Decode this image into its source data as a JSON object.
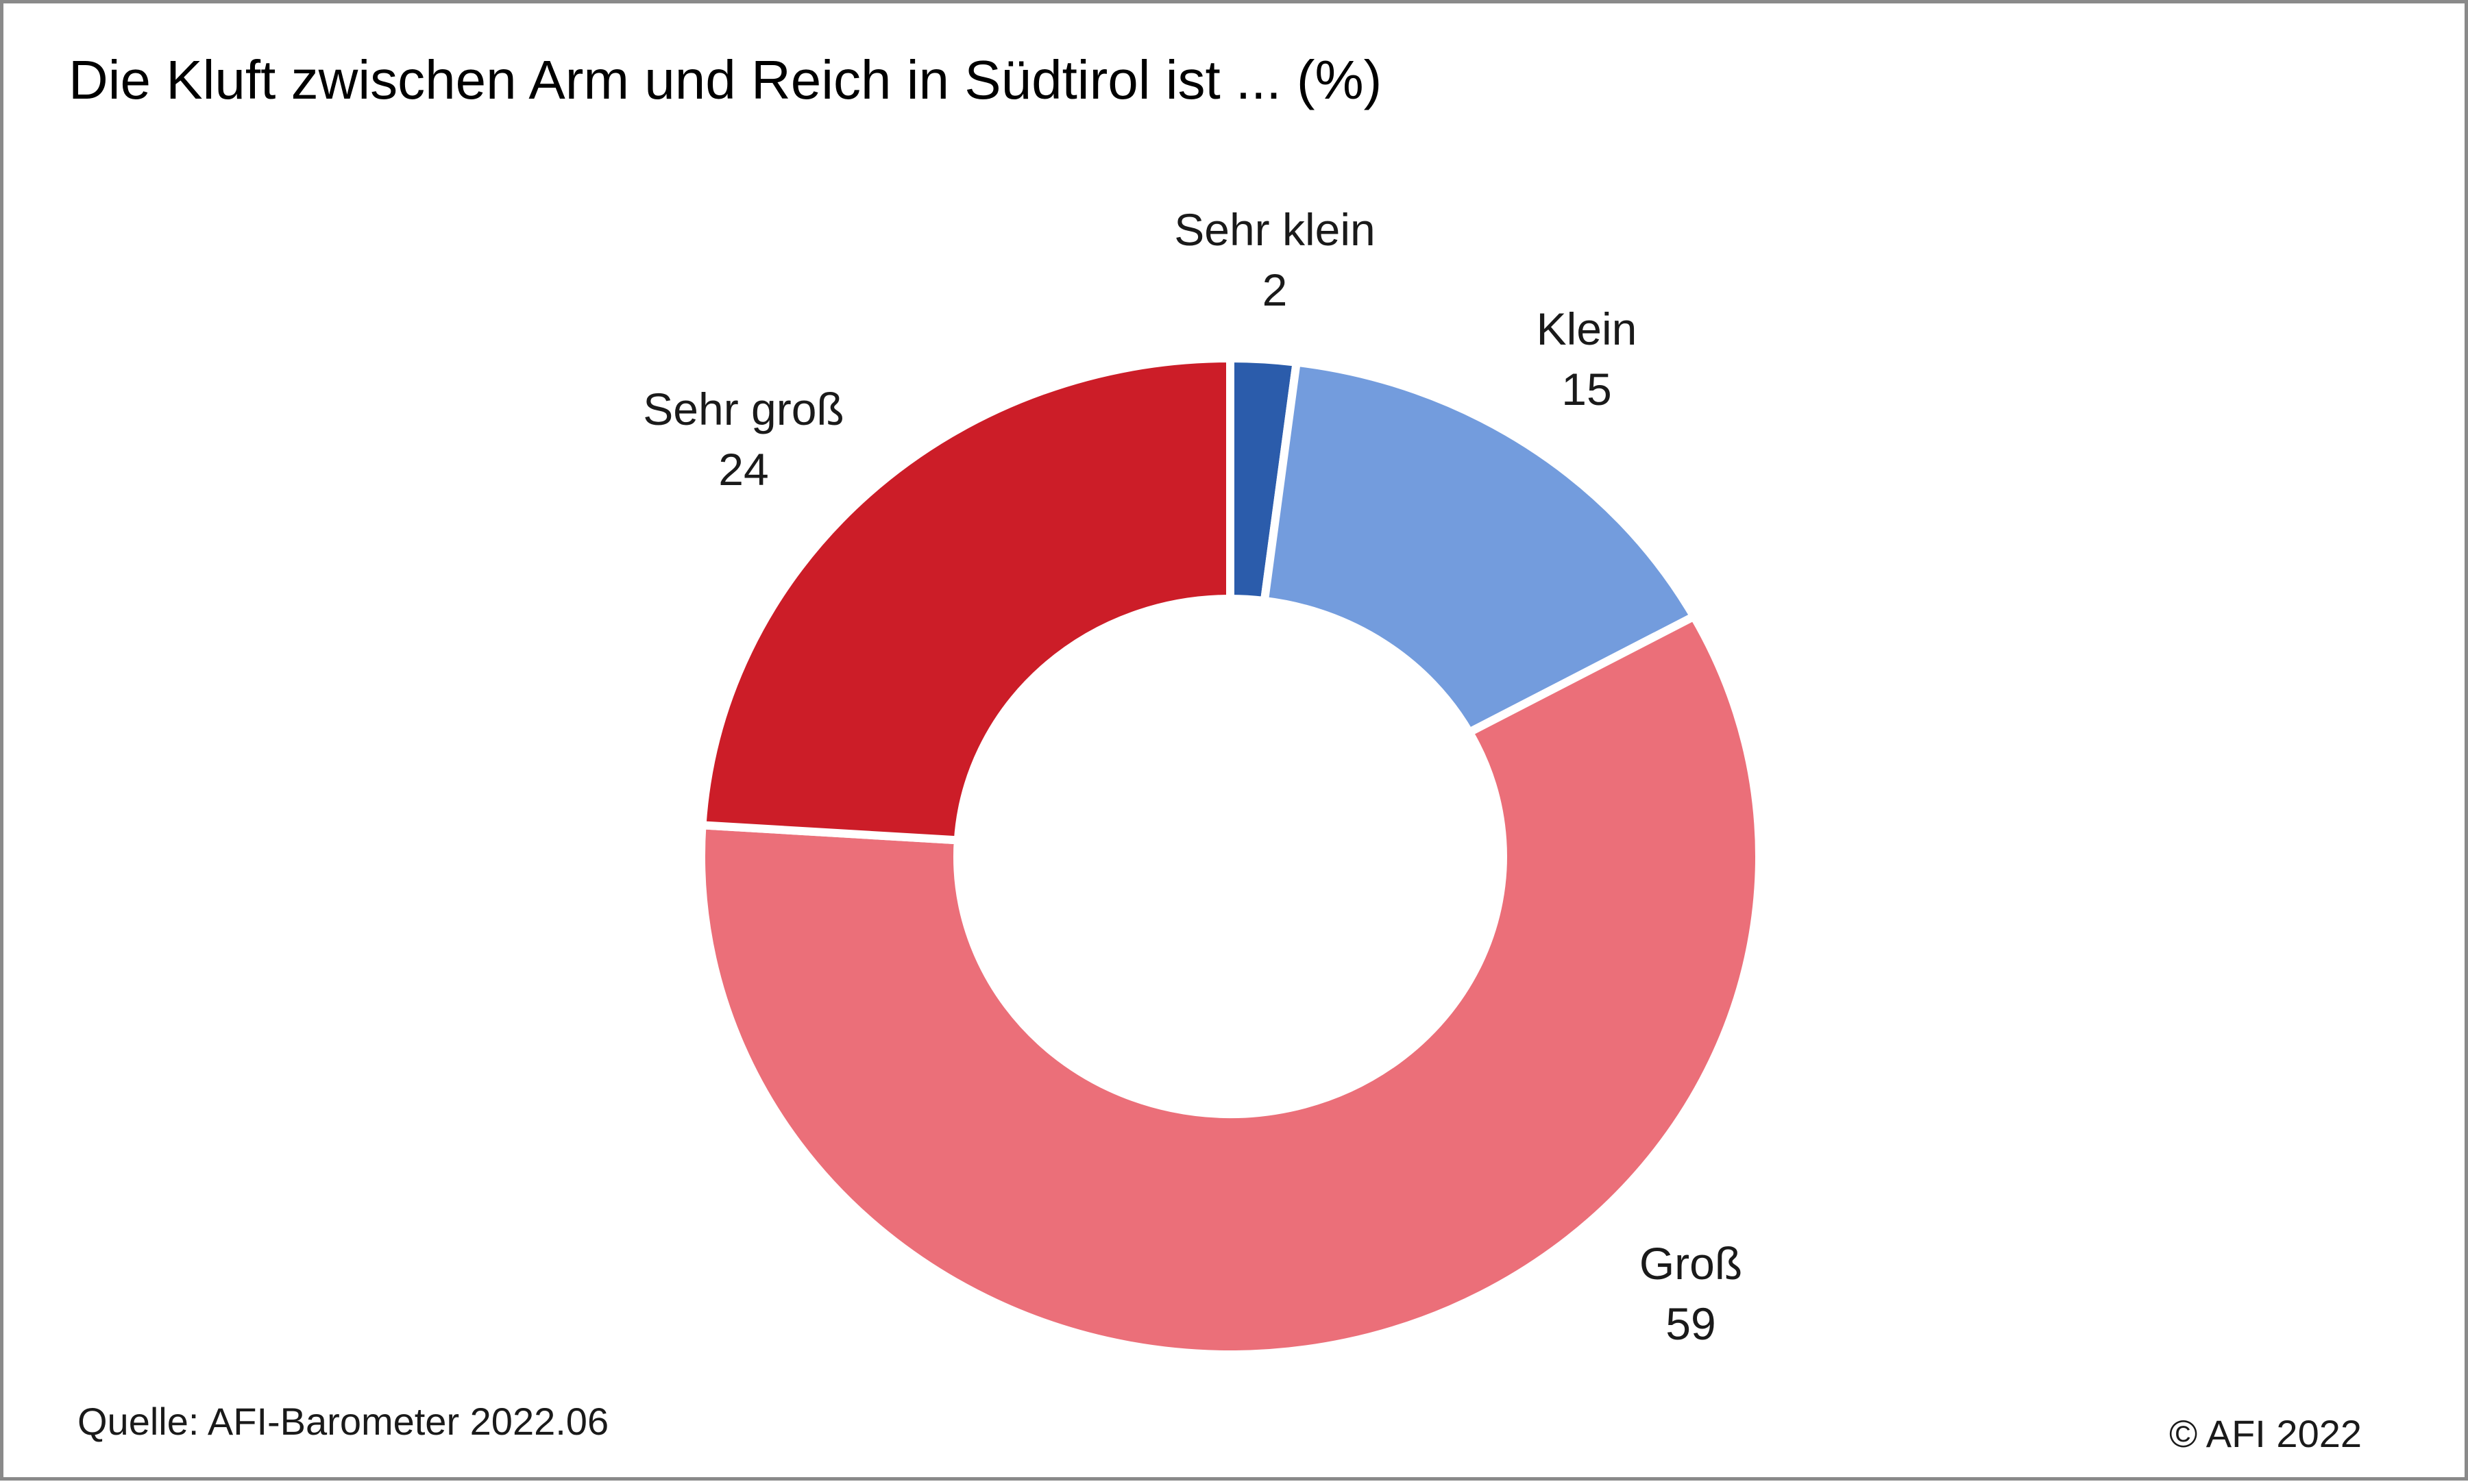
{
  "title": "Die Kluft zwischen Arm und Reich in Südtirol ist ... (%)",
  "source": "Quelle: AFI-Barometer 2022.06",
  "copyright": "© AFI 2022",
  "chart_data": {
    "type": "pie",
    "variant": "donut",
    "title": "Die Kluft zwischen Arm und Reich in Südtirol ist ... (%)",
    "unit": "%",
    "categories": [
      "Sehr klein",
      "Klein",
      "Groß",
      "Sehr groß"
    ],
    "values": [
      2,
      15,
      59,
      24
    ],
    "colors": [
      "#2b5cab",
      "#739cdd",
      "#eb6f79",
      "#cc1d28"
    ],
    "legend": "none",
    "labels_position": "outside"
  }
}
